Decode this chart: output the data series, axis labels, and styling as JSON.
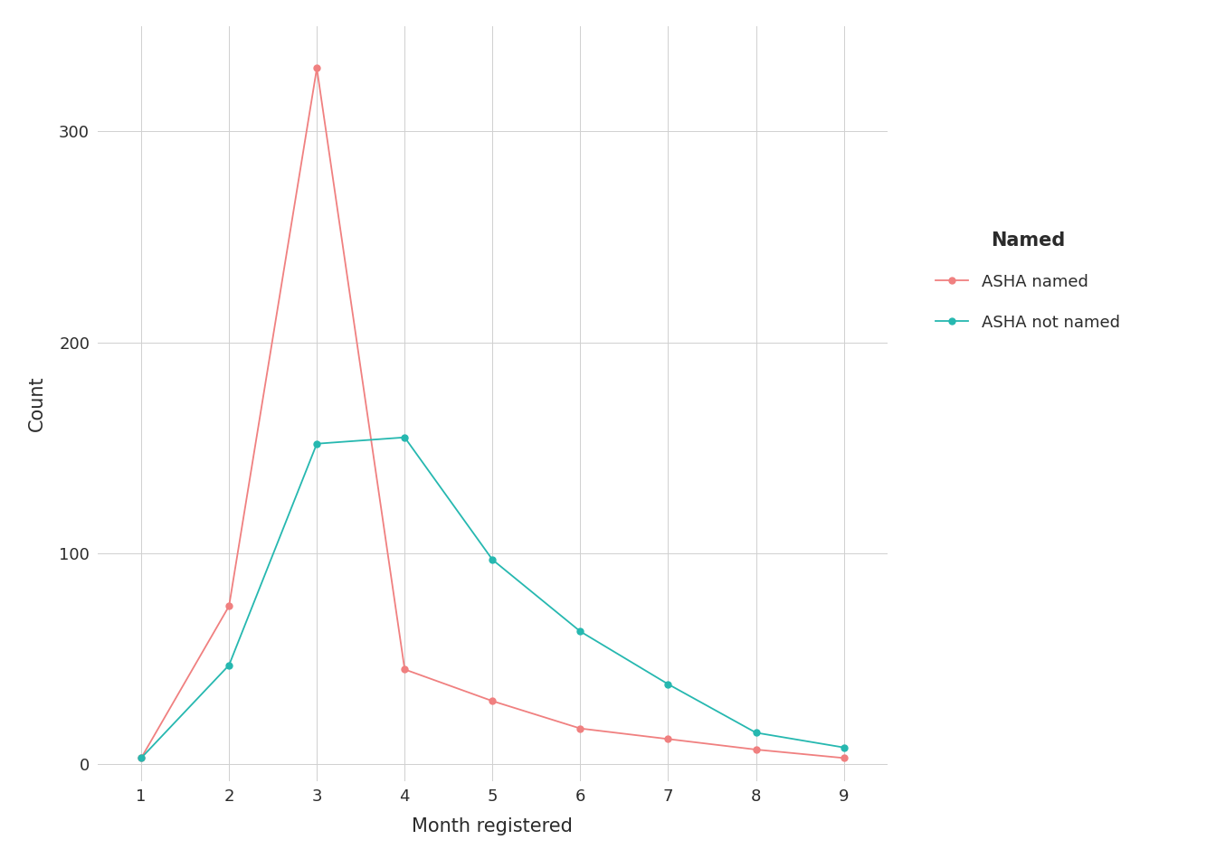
{
  "x": [
    1,
    2,
    3,
    4,
    5,
    6,
    7,
    8,
    9
  ],
  "asha_named": [
    3,
    75,
    330,
    45,
    30,
    17,
    12,
    7,
    3
  ],
  "asha_not_named": [
    3,
    47,
    152,
    155,
    97,
    63,
    38,
    15,
    8
  ],
  "asha_named_color": "#F08080",
  "asha_not_named_color": "#26B8B0",
  "xlabel": "Month registered",
  "ylabel": "Count",
  "legend_title": "Named",
  "legend_label_named": "ASHA named",
  "legend_label_not_named": "ASHA not named",
  "ylim_min": -8,
  "ylim_max": 350,
  "yticks": [
    0,
    100,
    200,
    300
  ],
  "xticks": [
    1,
    2,
    3,
    4,
    5,
    6,
    7,
    8,
    9
  ],
  "background_color": "#ffffff",
  "grid_color": "#d0d0d0",
  "marker_size": 5,
  "linewidth": 1.3,
  "text_color": "#333333"
}
